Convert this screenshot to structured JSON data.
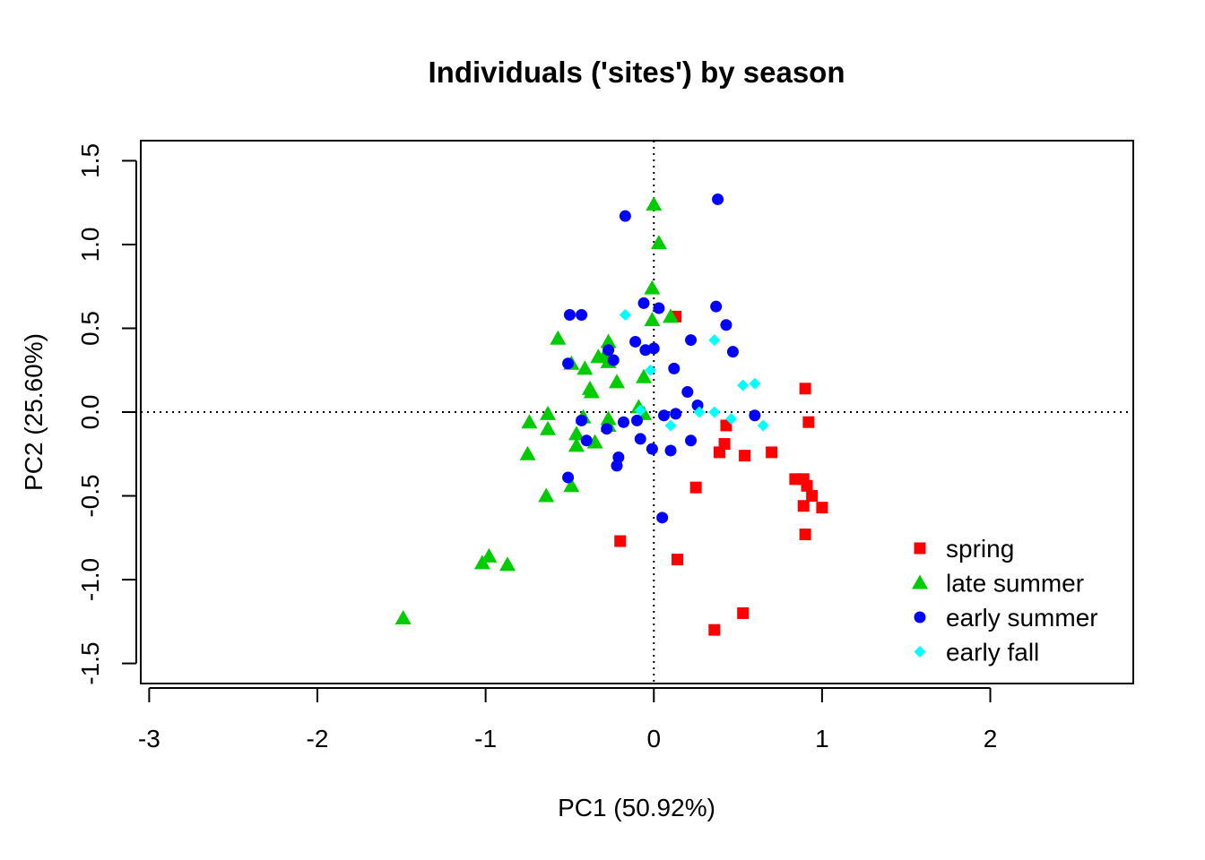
{
  "chart_data": {
    "type": "scatter",
    "title": "Individuals ('sites') by season",
    "xlabel": "PC1 (50.92%)",
    "ylabel": "PC2 (25.60%)",
    "xlim": [
      -3.05,
      2.85
    ],
    "ylim": [
      -1.62,
      1.62
    ],
    "x_ticks": [
      -3,
      -2,
      -1,
      0,
      1,
      2
    ],
    "x_tick_labels": [
      "-3",
      "-2",
      "-1",
      "0",
      "1",
      "2"
    ],
    "y_ticks": [
      -1.5,
      -1.0,
      -0.5,
      0.0,
      0.5,
      1.0,
      1.5
    ],
    "y_tick_labels": [
      "-1.5",
      "-1.0",
      "-0.5",
      "0.0",
      "0.5",
      "1.0",
      "1.5"
    ],
    "reference_lines": {
      "x": 0,
      "y": 0,
      "style": "dotted"
    },
    "grid": false,
    "legend_position": "bottom-right",
    "series": [
      {
        "name": "spring",
        "marker": "square",
        "color": "#ff0000",
        "points": [
          [
            0.13,
            0.57
          ],
          [
            0.9,
            0.14
          ],
          [
            0.92,
            -0.06
          ],
          [
            0.43,
            -0.08
          ],
          [
            0.42,
            -0.19
          ],
          [
            0.39,
            -0.24
          ],
          [
            0.54,
            -0.26
          ],
          [
            0.7,
            -0.24
          ],
          [
            0.84,
            -0.4
          ],
          [
            0.89,
            -0.4
          ],
          [
            0.91,
            -0.44
          ],
          [
            0.94,
            -0.5
          ],
          [
            0.89,
            -0.56
          ],
          [
            1.0,
            -0.57
          ],
          [
            0.9,
            -0.73
          ],
          [
            0.25,
            -0.45
          ],
          [
            -0.2,
            -0.77
          ],
          [
            0.14,
            -0.88
          ],
          [
            0.53,
            -1.2
          ],
          [
            0.36,
            -1.3
          ]
        ]
      },
      {
        "name": "late summer",
        "marker": "triangle",
        "color": "#00cc00",
        "points": [
          [
            0.0,
            1.24
          ],
          [
            0.03,
            1.01
          ],
          [
            -0.01,
            0.74
          ],
          [
            0.1,
            0.57
          ],
          [
            -0.01,
            0.55
          ],
          [
            -0.57,
            0.44
          ],
          [
            -0.49,
            0.29
          ],
          [
            -0.41,
            0.26
          ],
          [
            -0.27,
            0.42
          ],
          [
            -0.29,
            0.34
          ],
          [
            -0.33,
            0.33
          ],
          [
            -0.27,
            0.3
          ],
          [
            -0.38,
            0.14
          ],
          [
            -0.37,
            0.12
          ],
          [
            -0.22,
            0.18
          ],
          [
            -0.06,
            0.21
          ],
          [
            -0.09,
            0.03
          ],
          [
            -0.06,
            -0.01
          ],
          [
            -0.27,
            -0.04
          ],
          [
            -0.27,
            -0.08
          ],
          [
            -0.42,
            -0.03
          ],
          [
            -0.46,
            -0.13
          ],
          [
            -0.46,
            -0.2
          ],
          [
            -0.35,
            -0.18
          ],
          [
            -0.74,
            -0.06
          ],
          [
            -0.63,
            -0.01
          ],
          [
            -0.63,
            -0.1
          ],
          [
            -0.75,
            -0.25
          ],
          [
            -0.64,
            -0.5
          ],
          [
            -0.49,
            -0.44
          ],
          [
            -0.98,
            -0.86
          ],
          [
            -1.02,
            -0.9
          ],
          [
            -0.87,
            -0.91
          ],
          [
            -1.49,
            -1.23
          ]
        ]
      },
      {
        "name": "early summer",
        "marker": "circle",
        "color": "#0000ff",
        "points": [
          [
            0.38,
            1.27
          ],
          [
            -0.17,
            1.17
          ],
          [
            -0.06,
            0.65
          ],
          [
            0.03,
            0.62
          ],
          [
            0.37,
            0.63
          ],
          [
            -0.5,
            0.58
          ],
          [
            -0.43,
            0.58
          ],
          [
            0.43,
            0.52
          ],
          [
            -0.11,
            0.42
          ],
          [
            0.0,
            0.38
          ],
          [
            -0.05,
            0.37
          ],
          [
            0.22,
            0.43
          ],
          [
            0.47,
            0.36
          ],
          [
            -0.27,
            0.37
          ],
          [
            -0.24,
            0.31
          ],
          [
            -0.51,
            0.29
          ],
          [
            0.12,
            0.26
          ],
          [
            0.2,
            0.12
          ],
          [
            0.26,
            0.04
          ],
          [
            0.13,
            -0.01
          ],
          [
            0.06,
            -0.02
          ],
          [
            0.6,
            -0.02
          ],
          [
            -0.18,
            -0.06
          ],
          [
            -0.1,
            -0.05
          ],
          [
            -0.43,
            -0.05
          ],
          [
            -0.4,
            -0.17
          ],
          [
            -0.28,
            -0.1
          ],
          [
            -0.08,
            -0.16
          ],
          [
            -0.01,
            -0.22
          ],
          [
            0.1,
            -0.23
          ],
          [
            0.22,
            -0.17
          ],
          [
            -0.21,
            -0.27
          ],
          [
            -0.22,
            -0.32
          ],
          [
            -0.51,
            -0.39
          ],
          [
            0.05,
            -0.63
          ]
        ]
      },
      {
        "name": "early fall",
        "marker": "diamond",
        "color": "#00ffff",
        "points": [
          [
            -0.17,
            0.58
          ],
          [
            -0.02,
            0.25
          ],
          [
            0.36,
            0.43
          ],
          [
            0.53,
            0.16
          ],
          [
            0.6,
            0.17
          ],
          [
            -0.08,
            0.01
          ],
          [
            0.27,
            0.0
          ],
          [
            0.36,
            0.0
          ],
          [
            0.46,
            -0.04
          ],
          [
            0.65,
            -0.08
          ],
          [
            0.1,
            -0.08
          ]
        ]
      }
    ]
  }
}
